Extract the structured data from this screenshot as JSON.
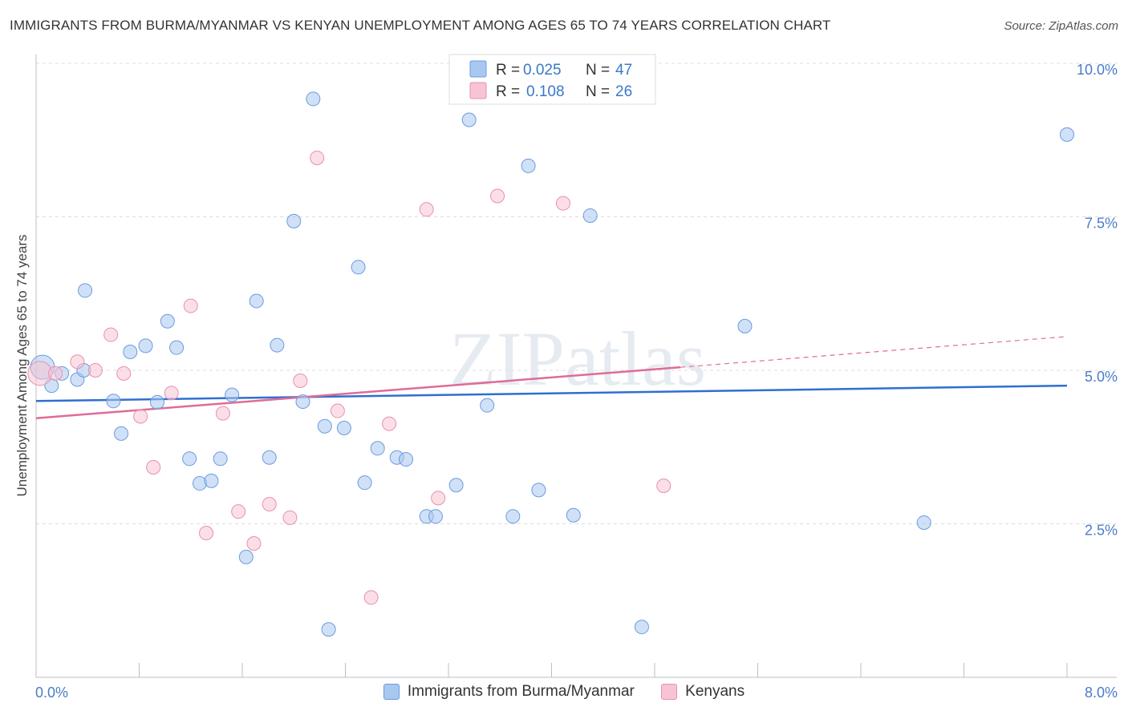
{
  "chart_data": {
    "type": "scatter",
    "title": "IMMIGRANTS FROM BURMA/MYANMAR VS KENYAN UNEMPLOYMENT AMONG AGES 65 TO 74 YEARS CORRELATION CHART",
    "source": "Source: ZipAtlas.com",
    "xlabel": "",
    "ylabel": "Unemployment Among Ages 65 to 74 years",
    "xlim": [
      0,
      8
    ],
    "ylim": [
      0,
      10
    ],
    "x_tick_labels": {
      "min": "0.0%",
      "max": "8.0%"
    },
    "y_ticks": [
      {
        "value": 2.5,
        "label": "2.5%"
      },
      {
        "value": 5.0,
        "label": "5.0%"
      },
      {
        "value": 7.5,
        "label": "7.5%"
      },
      {
        "value": 10.0,
        "label": "10.0%"
      }
    ],
    "watermark": "ZIPatlas",
    "series": [
      {
        "name": "Immigrants from Burma/Myanmar",
        "color": "#a9c8f0",
        "stroke": "#6a9be0",
        "line_color": "#2f6fd0",
        "R": "0.025",
        "N": "47",
        "trend": {
          "x0": 0.0,
          "y0": 4.5,
          "x1": 8.0,
          "y1": 4.75
        },
        "points": [
          [
            0.05,
            5.05
          ],
          [
            0.12,
            4.75
          ],
          [
            0.2,
            4.95
          ],
          [
            0.32,
            4.85
          ],
          [
            0.37,
            5.0
          ],
          [
            0.38,
            6.3
          ],
          [
            0.6,
            4.5
          ],
          [
            0.66,
            3.97
          ],
          [
            0.73,
            5.3
          ],
          [
            0.85,
            5.4
          ],
          [
            0.94,
            4.48
          ],
          [
            1.02,
            5.8
          ],
          [
            1.09,
            5.37
          ],
          [
            1.19,
            3.56
          ],
          [
            1.27,
            3.16
          ],
          [
            1.36,
            3.2
          ],
          [
            1.43,
            3.56
          ],
          [
            1.52,
            4.6
          ],
          [
            1.63,
            1.96
          ],
          [
            1.71,
            6.13
          ],
          [
            1.81,
            3.58
          ],
          [
            1.87,
            5.41
          ],
          [
            2.0,
            7.43
          ],
          [
            2.07,
            4.49
          ],
          [
            2.15,
            9.42
          ],
          [
            2.24,
            4.09
          ],
          [
            2.27,
            0.78
          ],
          [
            2.39,
            4.06
          ],
          [
            2.5,
            6.68
          ],
          [
            2.55,
            3.17
          ],
          [
            2.65,
            3.73
          ],
          [
            2.8,
            3.58
          ],
          [
            2.87,
            3.55
          ],
          [
            3.03,
            2.62
          ],
          [
            3.1,
            2.62
          ],
          [
            3.26,
            3.13
          ],
          [
            3.36,
            9.08
          ],
          [
            3.5,
            4.43
          ],
          [
            3.7,
            2.62
          ],
          [
            3.82,
            8.33
          ],
          [
            3.9,
            3.05
          ],
          [
            4.17,
            2.64
          ],
          [
            4.3,
            7.52
          ],
          [
            4.7,
            0.82
          ],
          [
            5.5,
            5.72
          ],
          [
            6.89,
            2.52
          ],
          [
            8.0,
            8.84
          ]
        ]
      },
      {
        "name": "Kenyans",
        "color": "#f7c4d4",
        "stroke": "#e890ad",
        "line_color": "#e06b97",
        "R": "0.108",
        "N": "26",
        "trend": {
          "x0": 0.0,
          "y0": 4.22,
          "x1": 5.0,
          "y1": 5.05
        },
        "trend_dashed": {
          "x0": 5.0,
          "y0": 5.05,
          "x1": 8.0,
          "y1": 5.55
        },
        "points": [
          [
            0.03,
            4.95
          ],
          [
            0.15,
            4.95
          ],
          [
            0.32,
            5.14
          ],
          [
            0.46,
            5.0
          ],
          [
            0.58,
            5.58
          ],
          [
            0.68,
            4.95
          ],
          [
            0.81,
            4.25
          ],
          [
            0.91,
            3.42
          ],
          [
            1.05,
            4.63
          ],
          [
            1.2,
            6.05
          ],
          [
            1.32,
            2.35
          ],
          [
            1.45,
            4.3
          ],
          [
            1.57,
            2.7
          ],
          [
            1.69,
            2.18
          ],
          [
            1.81,
            2.82
          ],
          [
            1.97,
            2.6
          ],
          [
            2.05,
            4.83
          ],
          [
            2.18,
            8.46
          ],
          [
            2.34,
            4.34
          ],
          [
            2.6,
            1.3
          ],
          [
            2.74,
            4.13
          ],
          [
            3.03,
            7.62
          ],
          [
            3.12,
            2.92
          ],
          [
            3.58,
            7.84
          ],
          [
            4.09,
            7.72
          ],
          [
            4.87,
            3.12
          ]
        ]
      }
    ]
  }
}
